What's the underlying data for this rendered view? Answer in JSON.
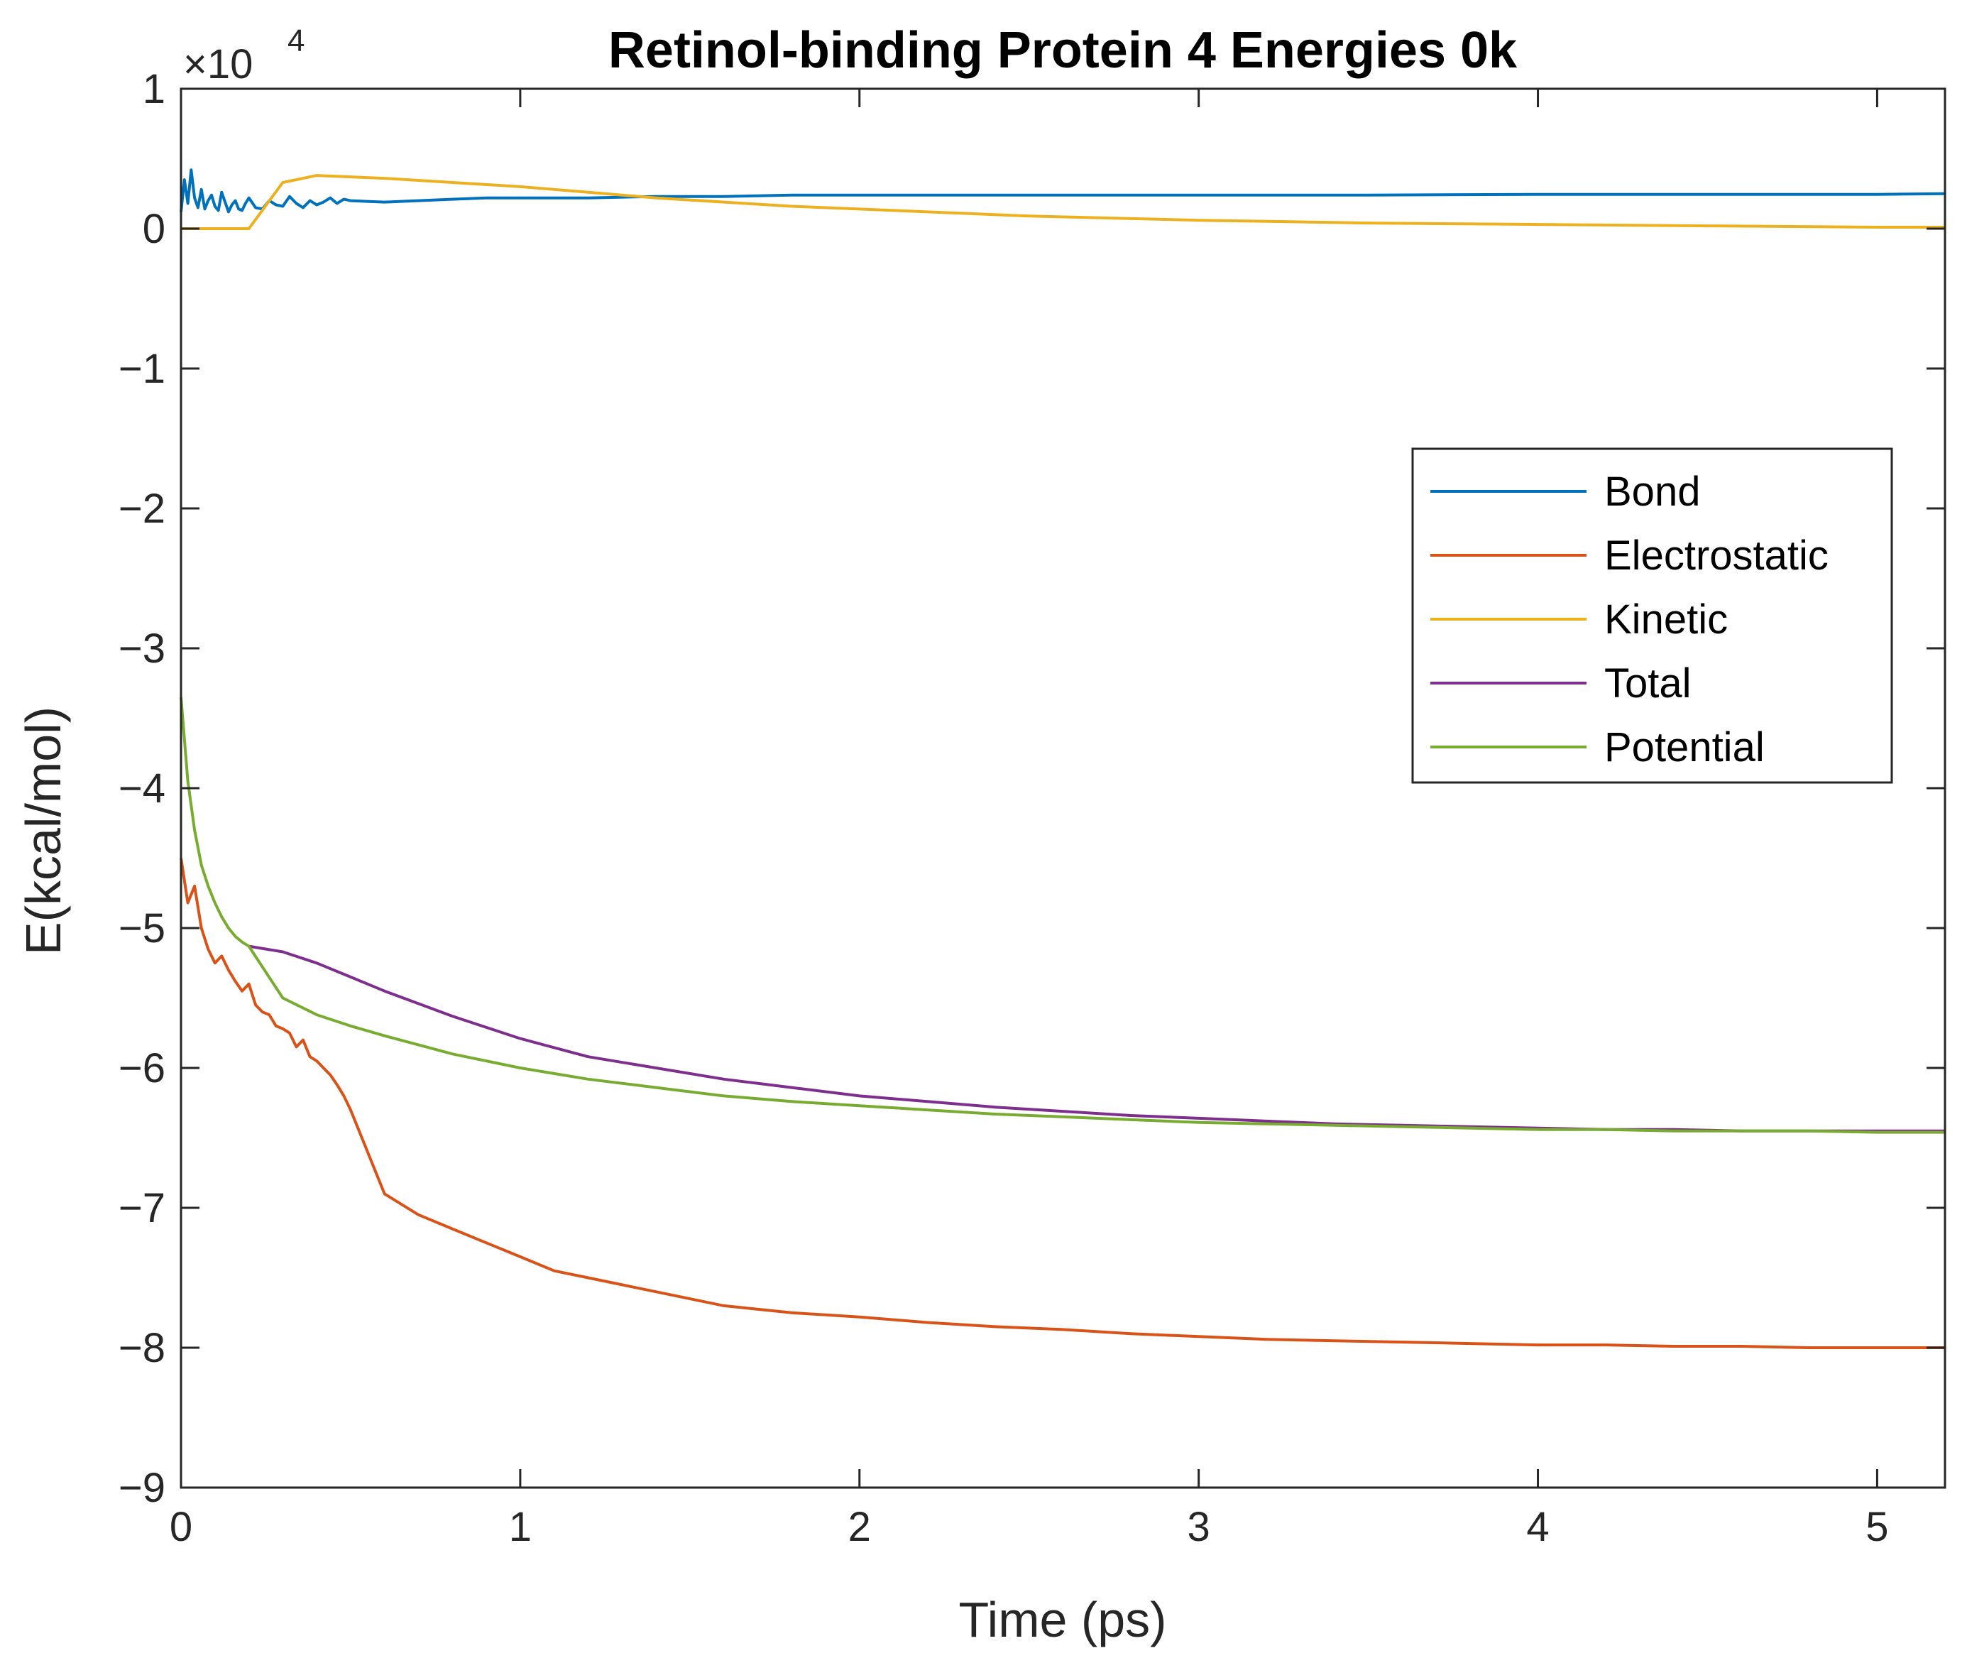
{
  "chart_data": {
    "type": "line",
    "title": "Retinol-binding Protein 4 Energies 0k",
    "xlabel": "Time (ps)",
    "ylabel": "E(kcal/mol)",
    "y_multiplier_label": {
      "base": "×10",
      "exponent": "4"
    },
    "xlim": [
      0,
      5.2
    ],
    "ylim": [
      -9,
      1
    ],
    "xticks": [
      0,
      1,
      2,
      3,
      4,
      5
    ],
    "xtick_labels": [
      "0",
      "1",
      "2",
      "3",
      "4",
      "5"
    ],
    "yticks": [
      1,
      0,
      -1,
      -2,
      -3,
      -4,
      -5,
      -6,
      -7,
      -8,
      -9
    ],
    "ytick_labels": [
      "1",
      "0",
      "−1",
      "−2",
      "−3",
      "−4",
      "−5",
      "−6",
      "−7",
      "−8",
      "−9"
    ],
    "grid": false,
    "legend_position": "right",
    "series": [
      {
        "name": "Bond",
        "color": "#0072BD",
        "x": [
          0,
          0.01,
          0.02,
          0.03,
          0.04,
          0.05,
          0.06,
          0.07,
          0.08,
          0.09,
          0.1,
          0.11,
          0.12,
          0.13,
          0.14,
          0.15,
          0.16,
          0.17,
          0.18,
          0.19,
          0.2,
          0.22,
          0.24,
          0.26,
          0.28,
          0.3,
          0.32,
          0.34,
          0.36,
          0.38,
          0.4,
          0.42,
          0.44,
          0.46,
          0.48,
          0.5,
          0.6,
          0.7,
          0.8,
          0.9,
          1.0,
          1.1,
          1.2,
          1.4,
          1.6,
          1.8,
          2.0,
          2.5,
          3.0,
          3.5,
          4.0,
          4.5,
          5.0,
          5.2
        ],
        "y": [
          0.12,
          0.35,
          0.18,
          0.42,
          0.22,
          0.15,
          0.28,
          0.14,
          0.2,
          0.24,
          0.16,
          0.13,
          0.26,
          0.19,
          0.12,
          0.17,
          0.2,
          0.14,
          0.13,
          0.18,
          0.22,
          0.15,
          0.14,
          0.2,
          0.17,
          0.16,
          0.23,
          0.18,
          0.15,
          0.2,
          0.17,
          0.19,
          0.22,
          0.18,
          0.21,
          0.2,
          0.19,
          0.2,
          0.21,
          0.22,
          0.22,
          0.22,
          0.22,
          0.23,
          0.23,
          0.24,
          0.24,
          0.24,
          0.24,
          0.24,
          0.245,
          0.245,
          0.245,
          0.25
        ]
      },
      {
        "name": "Electrostatic",
        "color": "#D95319",
        "x": [
          0,
          0.02,
          0.04,
          0.06,
          0.08,
          0.1,
          0.12,
          0.14,
          0.16,
          0.18,
          0.2,
          0.22,
          0.24,
          0.26,
          0.28,
          0.3,
          0.32,
          0.34,
          0.36,
          0.38,
          0.4,
          0.42,
          0.44,
          0.46,
          0.48,
          0.5,
          0.6,
          0.7,
          0.8,
          0.9,
          1.0,
          1.1,
          1.2,
          1.4,
          1.6,
          1.8,
          2.0,
          2.2,
          2.4,
          2.6,
          2.8,
          3.0,
          3.2,
          3.4,
          3.6,
          3.8,
          4.0,
          4.2,
          4.4,
          4.6,
          4.8,
          5.0,
          5.2
        ],
        "y": [
          -4.5,
          -4.82,
          -4.7,
          -5.0,
          -5.15,
          -5.25,
          -5.2,
          -5.3,
          -5.38,
          -5.45,
          -5.4,
          -5.55,
          -5.6,
          -5.62,
          -5.7,
          -5.72,
          -5.75,
          -5.85,
          -5.8,
          -5.92,
          -5.95,
          -6.0,
          -6.05,
          -6.12,
          -6.2,
          -6.3,
          -6.9,
          -7.05,
          -7.15,
          -7.25,
          -7.35,
          -7.45,
          -7.5,
          -7.6,
          -7.7,
          -7.75,
          -7.78,
          -7.82,
          -7.85,
          -7.87,
          -7.9,
          -7.92,
          -7.94,
          -7.95,
          -7.96,
          -7.97,
          -7.98,
          -7.98,
          -7.99,
          -7.99,
          -8.0,
          -8.0,
          -8.0
        ]
      },
      {
        "name": "Kinetic",
        "color": "#EDB120",
        "x": [
          0,
          0.2,
          0.3,
          0.4,
          0.5,
          0.6,
          0.8,
          1.0,
          1.2,
          1.4,
          1.6,
          1.8,
          2.0,
          2.5,
          3.0,
          3.5,
          4.0,
          4.5,
          5.0,
          5.2
        ],
        "y": [
          0.0,
          0.0,
          0.33,
          0.38,
          0.37,
          0.36,
          0.33,
          0.3,
          0.26,
          0.22,
          0.19,
          0.16,
          0.14,
          0.09,
          0.06,
          0.04,
          0.03,
          0.02,
          0.01,
          0.01
        ]
      },
      {
        "name": "Total",
        "color": "#7E2F8E",
        "x": [
          0.2,
          0.3,
          0.4,
          0.5,
          0.6,
          0.8,
          1.0,
          1.2,
          1.4,
          1.6,
          1.8,
          2.0,
          2.2,
          2.4,
          2.6,
          2.8,
          3.0,
          3.2,
          3.4,
          3.6,
          3.8,
          4.0,
          4.2,
          4.4,
          4.6,
          4.8,
          5.0,
          5.2
        ],
        "y": [
          -5.13,
          -5.17,
          -5.25,
          -5.35,
          -5.45,
          -5.63,
          -5.79,
          -5.92,
          -6.0,
          -6.08,
          -6.14,
          -6.2,
          -6.24,
          -6.28,
          -6.31,
          -6.34,
          -6.36,
          -6.38,
          -6.4,
          -6.41,
          -6.42,
          -6.43,
          -6.44,
          -6.44,
          -6.45,
          -6.45,
          -6.45,
          -6.45
        ]
      },
      {
        "name": "Potential",
        "color": "#77AC30",
        "x": [
          0,
          0.02,
          0.04,
          0.06,
          0.08,
          0.1,
          0.12,
          0.14,
          0.16,
          0.18,
          0.2,
          0.3,
          0.4,
          0.5,
          0.6,
          0.8,
          1.0,
          1.2,
          1.4,
          1.6,
          1.8,
          2.0,
          2.2,
          2.4,
          2.6,
          2.8,
          3.0,
          3.2,
          3.4,
          3.6,
          3.8,
          4.0,
          4.2,
          4.4,
          4.6,
          4.8,
          5.0,
          5.2
        ],
        "y": [
          -3.35,
          -3.95,
          -4.3,
          -4.55,
          -4.7,
          -4.82,
          -4.92,
          -5.0,
          -5.06,
          -5.1,
          -5.13,
          -5.5,
          -5.62,
          -5.7,
          -5.77,
          -5.9,
          -6.0,
          -6.08,
          -6.14,
          -6.2,
          -6.24,
          -6.27,
          -6.3,
          -6.33,
          -6.35,
          -6.37,
          -6.39,
          -6.4,
          -6.41,
          -6.42,
          -6.43,
          -6.44,
          -6.44,
          -6.45,
          -6.45,
          -6.45,
          -6.46,
          -6.46
        ]
      }
    ]
  }
}
